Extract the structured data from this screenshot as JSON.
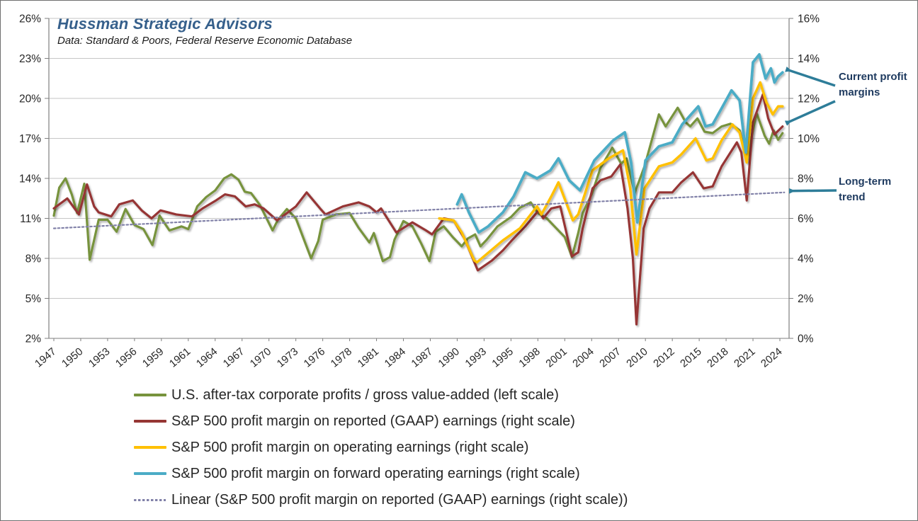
{
  "header": {
    "title": "Hussman Strategic Advisors",
    "subtitle": "Data: Standard & Poors, Federal Reserve Economic Database",
    "title_color": "#36608c"
  },
  "annotations": {
    "current": {
      "text": "Current profit margins"
    },
    "trend": {
      "text": "Long-term trend"
    },
    "arrow_color": "#2e7d99",
    "text_color": "#1e3a5f"
  },
  "chart_data": {
    "type": "line",
    "title": "Hussman Strategic Advisors",
    "subtitle": "Data: Standard & Poors, Federal Reserve Economic Database",
    "grid": true,
    "legend_position": "bottom",
    "x_axis": {
      "labels": [
        1947,
        1950,
        1953,
        1956,
        1959,
        1961,
        1964,
        1967,
        1970,
        1973,
        1976,
        1978,
        1981,
        1984,
        1987,
        1990,
        1993,
        1995,
        1998,
        2001,
        2004,
        2007,
        2010,
        2012,
        2015,
        2018,
        2021,
        2024
      ]
    },
    "left_axis": {
      "min": 2,
      "max": 26,
      "ticks": [
        "26%",
        "23%",
        "20%",
        "17%",
        "14%",
        "11%",
        "8%",
        "5%",
        "2%"
      ]
    },
    "right_axis": {
      "min": 0,
      "max": 16,
      "ticks": [
        "16%",
        "14%",
        "12%",
        "10%",
        "8%",
        "6%",
        "4%",
        "2%",
        "0%"
      ]
    },
    "grid_color": "#c6c6c6",
    "axis_color": "#7f7f7f",
    "tick_label_color": "#262626",
    "series": [
      {
        "name": "us-profits-gva",
        "label": "U.S. after-tax corporate profits / gross value-added (left scale)",
        "color": "#77933c",
        "scale": "left",
        "style": "solid",
        "width": 3.2,
        "points": [
          [
            1947,
            11.2
          ],
          [
            1947.6,
            13.3
          ],
          [
            1948.3,
            14.0
          ],
          [
            1949,
            12.8
          ],
          [
            1949.6,
            11.4
          ],
          [
            1950.4,
            13.6
          ],
          [
            1951,
            7.9
          ],
          [
            1952,
            10.9
          ],
          [
            1953,
            10.9
          ],
          [
            1954,
            10.0
          ],
          [
            1955,
            11.7
          ],
          [
            1956,
            10.5
          ],
          [
            1957,
            10.2
          ],
          [
            1958,
            9.0
          ],
          [
            1958.8,
            11.2
          ],
          [
            1959.6,
            10.1
          ],
          [
            1960.5,
            10.4
          ],
          [
            1961,
            10.2
          ],
          [
            1962,
            11.9
          ],
          [
            1963,
            12.6
          ],
          [
            1964,
            13.1
          ],
          [
            1965,
            14.0
          ],
          [
            1965.8,
            14.3
          ],
          [
            1966.6,
            13.9
          ],
          [
            1967.3,
            13.0
          ],
          [
            1968,
            12.9
          ],
          [
            1969,
            12.0
          ],
          [
            1970.4,
            10.1
          ],
          [
            1971,
            10.9
          ],
          [
            1972,
            11.7
          ],
          [
            1973,
            11.0
          ],
          [
            1974.7,
            8.0
          ],
          [
            1975.5,
            9.3
          ],
          [
            1976,
            10.9
          ],
          [
            1977,
            11.3
          ],
          [
            1978,
            11.4
          ],
          [
            1979,
            10.3
          ],
          [
            1980.2,
            9.2
          ],
          [
            1980.7,
            9.9
          ],
          [
            1981.7,
            7.8
          ],
          [
            1982.5,
            8.1
          ],
          [
            1983,
            9.4
          ],
          [
            1984,
            10.8
          ],
          [
            1985,
            10.4
          ],
          [
            1986,
            9.1
          ],
          [
            1986.9,
            7.8
          ],
          [
            1987.6,
            10.0
          ],
          [
            1988.5,
            10.4
          ],
          [
            1989.5,
            9.6
          ],
          [
            1990.5,
            8.9
          ],
          [
            1991.2,
            9.5
          ],
          [
            1992,
            9.8
          ],
          [
            1992.6,
            8.9
          ],
          [
            1993.2,
            9.4
          ],
          [
            1994,
            10.4
          ],
          [
            1995,
            11.1
          ],
          [
            1996,
            11.8
          ],
          [
            1997.2,
            12.2
          ],
          [
            1998,
            11.4
          ],
          [
            1999,
            11.0
          ],
          [
            2000,
            10.3
          ],
          [
            2001,
            9.6
          ],
          [
            2001.8,
            8.1
          ],
          [
            2002.5,
            9.9
          ],
          [
            2003,
            11.4
          ],
          [
            2004,
            12.8
          ],
          [
            2005,
            14.8
          ],
          [
            2006.3,
            16.3
          ],
          [
            2007.3,
            15.1
          ],
          [
            2007.9,
            15.5
          ],
          [
            2008.8,
            12.9
          ],
          [
            2009.9,
            14.9
          ],
          [
            2011,
            18.8
          ],
          [
            2011.5,
            17.9
          ],
          [
            2012.6,
            19.3
          ],
          [
            2013.5,
            18.2
          ],
          [
            2014,
            17.9
          ],
          [
            2014.8,
            18.5
          ],
          [
            2015.6,
            17.5
          ],
          [
            2016.5,
            17.4
          ],
          [
            2017.5,
            17.9
          ],
          [
            2018.5,
            18.1
          ],
          [
            2019.5,
            17.6
          ],
          [
            2020.3,
            15.3
          ],
          [
            2021.4,
            18.9
          ],
          [
            2022.3,
            17.2
          ],
          [
            2022.8,
            16.6
          ],
          [
            2023.3,
            17.6
          ],
          [
            2023.8,
            16.9
          ],
          [
            2024.3,
            17.4
          ]
        ]
      },
      {
        "name": "sp500-gaap-margin",
        "label": "S&P 500 profit margin on reported (GAAP) earnings (right scale)",
        "color": "#963634",
        "scale": "right",
        "style": "solid",
        "width": 3.2,
        "points": [
          [
            1947,
            6.5
          ],
          [
            1948.5,
            7.0
          ],
          [
            1949.8,
            6.2
          ],
          [
            1950.7,
            7.7
          ],
          [
            1951.5,
            6.6
          ],
          [
            1952,
            6.3
          ],
          [
            1953.4,
            6.1
          ],
          [
            1954.3,
            6.7
          ],
          [
            1955.8,
            6.9
          ],
          [
            1956.8,
            6.4
          ],
          [
            1957.9,
            6.0
          ],
          [
            1958.9,
            6.4
          ],
          [
            1960.1,
            6.2
          ],
          [
            1961.4,
            6.1
          ],
          [
            1962.6,
            6.5
          ],
          [
            1964.1,
            6.9
          ],
          [
            1965.1,
            7.2
          ],
          [
            1966.2,
            7.1
          ],
          [
            1967.4,
            6.6
          ],
          [
            1968.4,
            6.7
          ],
          [
            1969.4,
            6.5
          ],
          [
            1970.9,
            5.9
          ],
          [
            1971.8,
            6.2
          ],
          [
            1973,
            6.6
          ],
          [
            1974.2,
            7.3
          ],
          [
            1975.7,
            6.5
          ],
          [
            1976.2,
            6.2
          ],
          [
            1977.5,
            6.6
          ],
          [
            1979,
            6.8
          ],
          [
            1980.2,
            6.6
          ],
          [
            1981,
            6.3
          ],
          [
            1981.5,
            6.5
          ],
          [
            1983.2,
            5.3
          ],
          [
            1985,
            5.8
          ],
          [
            1986.5,
            5.4
          ],
          [
            1987.2,
            5.2
          ],
          [
            1988.5,
            6.0
          ],
          [
            1989.6,
            5.9
          ],
          [
            1990.8,
            5.0
          ],
          [
            1992.3,
            3.4
          ],
          [
            1993.6,
            3.9
          ],
          [
            1994.4,
            4.4
          ],
          [
            1995.1,
            4.9
          ],
          [
            1996.6,
            5.6
          ],
          [
            1998.1,
            6.4
          ],
          [
            1998.6,
            6.0
          ],
          [
            1999.5,
            6.5
          ],
          [
            2000.5,
            6.6
          ],
          [
            2001.8,
            4.1
          ],
          [
            2002.5,
            4.3
          ],
          [
            2003,
            5.5
          ],
          [
            2004.1,
            7.5
          ],
          [
            2005,
            7.9
          ],
          [
            2006.2,
            8.1
          ],
          [
            2007.2,
            8.7
          ],
          [
            2008,
            6.5
          ],
          [
            2008.6,
            4.0
          ],
          [
            2009.0,
            0.7
          ],
          [
            2009.8,
            5.5
          ],
          [
            2010.3,
            6.5
          ],
          [
            2011,
            7.3
          ],
          [
            2012,
            7.3
          ],
          [
            2013,
            7.8
          ],
          [
            2014.3,
            8.3
          ],
          [
            2015.5,
            7.5
          ],
          [
            2016.5,
            7.6
          ],
          [
            2017.5,
            8.6
          ],
          [
            2019.2,
            9.8
          ],
          [
            2019.7,
            9.3
          ],
          [
            2020.3,
            6.9
          ],
          [
            2021,
            10.8
          ],
          [
            2022.1,
            12.2
          ],
          [
            2022.7,
            11.0
          ],
          [
            2023.4,
            10.2
          ],
          [
            2024.3,
            10.6
          ]
        ]
      },
      {
        "name": "sp500-operating-margin",
        "label": "S&P 500 profit margin on operating earnings (right scale)",
        "color": "#ffc000",
        "scale": "right",
        "style": "solid",
        "width": 3.5,
        "points": [
          [
            1988,
            6.0
          ],
          [
            1989.6,
            5.9
          ],
          [
            1990.5,
            5.3
          ],
          [
            1991.9,
            3.9
          ],
          [
            1992.2,
            3.8
          ],
          [
            1994.4,
            4.9
          ],
          [
            1996,
            5.5
          ],
          [
            1997.9,
            6.6
          ],
          [
            1998.4,
            6.2
          ],
          [
            1999.5,
            7.1
          ],
          [
            2000.3,
            7.8
          ],
          [
            2001.9,
            5.9
          ],
          [
            2002.5,
            6.2
          ],
          [
            2004.1,
            8.4
          ],
          [
            2005.9,
            9.0
          ],
          [
            2007.5,
            9.4
          ],
          [
            2008.3,
            7.5
          ],
          [
            2009.0,
            4.2
          ],
          [
            2009.9,
            7.5
          ],
          [
            2011,
            8.6
          ],
          [
            2012,
            8.8
          ],
          [
            2013,
            9.2
          ],
          [
            2014.6,
            10.0
          ],
          [
            2015.8,
            8.9
          ],
          [
            2016.5,
            9.0
          ],
          [
            2017.5,
            9.9
          ],
          [
            2018.7,
            10.7
          ],
          [
            2019.5,
            10.3
          ],
          [
            2020.3,
            8.8
          ],
          [
            2021,
            12.0
          ],
          [
            2021.8,
            12.8
          ],
          [
            2022.5,
            11.8
          ],
          [
            2023.2,
            11.2
          ],
          [
            2023.8,
            11.6
          ],
          [
            2024.3,
            11.6
          ]
        ]
      },
      {
        "name": "sp500-forward-operating-margin",
        "label": "S&P 500 profit margin on forward operating earnings (right scale)",
        "color": "#4bacc6",
        "scale": "right",
        "style": "solid",
        "width": 3.8,
        "points": [
          [
            1990,
            6.7
          ],
          [
            1990.5,
            7.2
          ],
          [
            1991.3,
            6.3
          ],
          [
            1992.4,
            5.3
          ],
          [
            1993.3,
            5.6
          ],
          [
            1994.4,
            6.3
          ],
          [
            1995.3,
            7.1
          ],
          [
            1996.6,
            8.3
          ],
          [
            1997.9,
            8.0
          ],
          [
            1999.4,
            8.4
          ],
          [
            2000.3,
            9.0
          ],
          [
            2001.5,
            7.9
          ],
          [
            2002.7,
            7.4
          ],
          [
            2004.3,
            8.9
          ],
          [
            2006.4,
            9.9
          ],
          [
            2007.7,
            10.3
          ],
          [
            2008.4,
            8.8
          ],
          [
            2009.1,
            5.8
          ],
          [
            2010,
            8.9
          ],
          [
            2011,
            9.6
          ],
          [
            2012,
            9.8
          ],
          [
            2013.1,
            10.7
          ],
          [
            2014.9,
            11.6
          ],
          [
            2015.7,
            10.6
          ],
          [
            2016.5,
            10.7
          ],
          [
            2017.5,
            11.5
          ],
          [
            2018.6,
            12.4
          ],
          [
            2019.5,
            11.9
          ],
          [
            2020.2,
            9.3
          ],
          [
            2021,
            13.8
          ],
          [
            2021.7,
            14.2
          ],
          [
            2022.4,
            13.0
          ],
          [
            2023,
            13.5
          ],
          [
            2023.4,
            12.8
          ],
          [
            2023.8,
            13.1
          ],
          [
            2024.3,
            13.3
          ]
        ]
      },
      {
        "name": "linear-trend",
        "label": "Linear (S&P 500 profit margin on reported (GAAP) earnings (right scale))",
        "color": "#8181a8",
        "scale": "right",
        "style": "dotted",
        "width": 2.2,
        "points": [
          [
            1947,
            5.5
          ],
          [
            2024.5,
            7.3
          ]
        ]
      }
    ]
  }
}
